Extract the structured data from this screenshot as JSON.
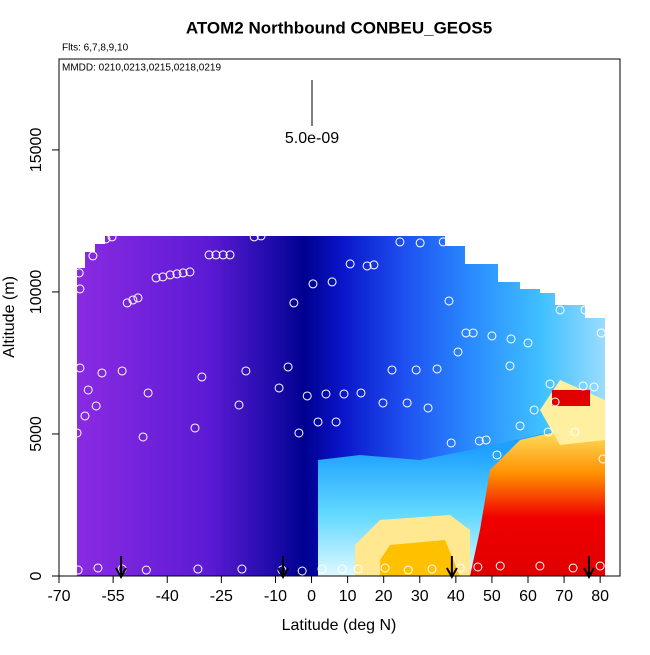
{
  "chart_data": {
    "type": "scatter",
    "title": "ATOM2 Northbound CONBEU_GEOS5",
    "flights_label": "Flts: 6,7,8,9,10",
    "dates_label": "MMDD: 0210,0213,0215,0218,0219",
    "scale_label": "5.0e-09",
    "x_label": "Latitude (deg N)",
    "y_label": "Altitude (m)",
    "xlim": [
      -70,
      85.5
    ],
    "ylim": [
      0,
      18200
    ],
    "xticks": [
      -70,
      -55,
      -40,
      -25,
      -10,
      0,
      10,
      20,
      30,
      40,
      50,
      60,
      70,
      80
    ],
    "yticks": [
      0,
      5000,
      10000,
      15000
    ],
    "point_color": "#ffffff",
    "arrows_x": [
      -52.8,
      -7.9,
      38.9,
      76.9
    ],
    "x": [
      -64.7,
      -59.2,
      -52.5,
      -45.8,
      -31.5,
      -19.3,
      -8.2,
      -2.6,
      2.9,
      8.5,
      12.9,
      20.4,
      26.8,
      33.4,
      41.2,
      46.1,
      52.3,
      63.3,
      72.5,
      80.0,
      -65.0,
      -62.8,
      -59.7,
      -61.9,
      -58.1,
      -52.5,
      -45.3,
      -64.2,
      -46.7,
      -32.3,
      -30.4,
      -20.1,
      -18.2,
      -9.0,
      -6.5,
      -3.5,
      -1.2,
      1.8,
      4.0,
      6.8,
      9.0,
      13.7,
      19.8,
      22.3,
      26.5,
      29.0,
      32.3,
      34.8,
      38.7,
      46.5,
      48.4,
      51.4,
      55.0,
      57.8,
      61.7,
      65.6,
      66.1,
      67.5,
      73.0,
      75.3,
      78.3,
      80.8,
      -64.4,
      -64.2,
      -60.6,
      -55.3,
      -57.0,
      -51.1,
      -49.5,
      -48.1,
      -43.1,
      -41.2,
      -39.2,
      -37.3,
      -35.6,
      -33.7,
      -28.4,
      -26.5,
      -24.5,
      -22.6,
      -15.9,
      -14.0,
      -4.9,
      0.4,
      5.7,
      10.7,
      15.4,
      17.3,
      24.5,
      30.1,
      36.5,
      38.1,
      40.6,
      42.8,
      44.8,
      50.0,
      55.3,
      60.0,
      68.9,
      75.8,
      80.3
    ],
    "y": [
      211,
      282,
      246,
      211,
      246,
      246,
      211,
      176,
      246,
      246,
      246,
      282,
      211,
      246,
      282,
      317,
      352,
      352,
      282,
      352,
      5035,
      5634,
      5986,
      6549,
      7148,
      7218,
      6444,
      7324,
      4894,
      5211,
      7007,
      6021,
      7218,
      6620,
      7359,
      5035,
      6338,
      5423,
      6408,
      5423,
      6408,
      6444,
      6092,
      7254,
      6092,
      7254,
      5915,
      7289,
      4683,
      4754,
      4789,
      4261,
      7394,
      5282,
      5845,
      5070,
      6761,
      6127,
      5070,
      6690,
      6655,
      4120,
      10669,
      10106,
      11268,
      11937,
      11866,
      9613,
      9718,
      9789,
      10493,
      10528,
      10599,
      10634,
      10669,
      10704,
      11303,
      11303,
      11303,
      11303,
      11937,
      11972,
      9613,
      10282,
      10352,
      10986,
      10915,
      10951,
      11761,
      11725,
      11761,
      9683,
      7887,
      8556,
      8556,
      8451,
      8345,
      8204,
      9366,
      9366,
      8556
    ]
  }
}
